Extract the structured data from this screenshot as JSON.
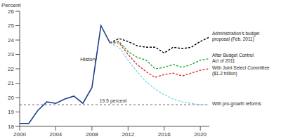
{
  "chart_data": {
    "type": "line",
    "y_label": "Percent",
    "x": [
      2000,
      2001,
      2002,
      2003,
      2004,
      2005,
      2006,
      2007,
      2008,
      2009,
      2010,
      2011,
      2012,
      2013,
      2014,
      2015,
      2016,
      2017,
      2018,
      2019,
      2020,
      2021
    ],
    "series": [
      {
        "name": "History",
        "color": "#1f3f8f",
        "line_style": "solid",
        "values": [
          18.2,
          18.2,
          19.1,
          19.7,
          19.6,
          19.9,
          20.1,
          19.6,
          20.7,
          25.0,
          23.8,
          null,
          null,
          null,
          null,
          null,
          null,
          null,
          null,
          null,
          null,
          null
        ]
      },
      {
        "name": "Administration's budget proposal (Feb. 2011)",
        "color": "#000000",
        "line_style": "dashed",
        "values": [
          null,
          null,
          null,
          null,
          null,
          null,
          null,
          null,
          null,
          null,
          23.8,
          24.1,
          23.9,
          23.6,
          23.5,
          23.5,
          23.1,
          23.5,
          23.4,
          23.5,
          23.9,
          24.2
        ]
      },
      {
        "name": "After Budget Control Act of 2011",
        "color": "#2ea43a",
        "line_style": "dashed",
        "values": [
          null,
          null,
          null,
          null,
          null,
          null,
          null,
          null,
          null,
          null,
          23.8,
          23.9,
          23.2,
          22.8,
          22.6,
          22.0,
          22.1,
          22.3,
          22.1,
          22.3,
          22.6,
          22.7
        ]
      },
      {
        "name": "With Joint Select Committee ($1.2 trillion)",
        "color": "#e0303a",
        "line_style": "dashed",
        "values": [
          null,
          null,
          null,
          null,
          null,
          null,
          null,
          null,
          null,
          null,
          23.8,
          23.8,
          23.0,
          22.3,
          21.8,
          21.4,
          21.6,
          21.7,
          21.5,
          21.7,
          21.9,
          22.0
        ]
      },
      {
        "name": "With pro-growth reforms",
        "color": "#7fd6ea",
        "line_style": "dashed",
        "values": [
          null,
          null,
          null,
          null,
          null,
          null,
          null,
          null,
          null,
          null,
          23.8,
          23.5,
          22.6,
          21.8,
          21.1,
          20.6,
          20.2,
          19.9,
          19.7,
          19.6,
          19.5,
          19.5
        ]
      }
    ],
    "xlim": [
      2000,
      2021
    ],
    "xticks": [
      2000,
      2004,
      2008,
      2012,
      2016,
      2020
    ],
    "ylim": [
      18,
      26
    ],
    "yticks": [
      18,
      19,
      20,
      21,
      22,
      23,
      24,
      25,
      26
    ],
    "grid": false,
    "reference_line": {
      "value": 19.5,
      "label": "19.5 percent"
    }
  }
}
